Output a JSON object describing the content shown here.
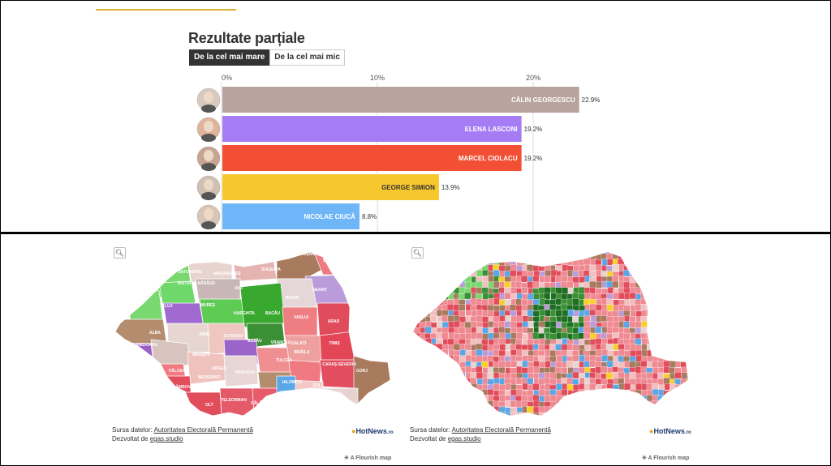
{
  "title": "Rezultate parțiale",
  "sort": {
    "desc_label": "De la cel mai mare",
    "asc_label": "De la cel mai mic"
  },
  "chart_data": {
    "type": "bar",
    "orientation": "horizontal",
    "title": "Rezultate parțiale",
    "x_ticks": [
      "0%",
      "10%",
      "20%"
    ],
    "xlim": [
      0,
      23
    ],
    "unit": "%",
    "grid": true,
    "categories": [
      "CĂLIN GEORGESCU",
      "ELENA LASCONI",
      "MARCEL CIOLACU",
      "GEORGE SIMION",
      "NICOLAE CIUCĂ"
    ],
    "values": [
      22.9,
      19.2,
      19.2,
      13.9,
      8.8
    ],
    "value_labels": [
      "22.9%",
      "19.2%",
      "19.2%",
      "13.9%",
      "8.8%"
    ],
    "colors": [
      "#b9a39f",
      "#a57cf4",
      "#f24f35",
      "#f7c72e",
      "#6eb6f7"
    ],
    "avatar_colors": [
      "#d8c9bf",
      "#e0b49c",
      "#c7a592",
      "#cfc0b3",
      "#d7c5b8"
    ]
  },
  "maps": {
    "left": {
      "zoom_icon": "search-icon",
      "county_labels": [
        "SATU MARE",
        "MARAMUREȘ",
        "SUCEAVA",
        "BOTOȘANI",
        "SĂLAJ",
        "BISTRIȚA-NĂSĂUD",
        "IAȘI",
        "NEAMȚ",
        "BIHOR",
        "CLUJ",
        "MUREȘ",
        "HARGHITA",
        "BACĂU",
        "VASLUI",
        "ARAD",
        "ALBA",
        "SIBIU",
        "COVASNA",
        "VRANCEA",
        "GALAȚI",
        "TIMIȘ",
        "HUNEDOARA",
        "BRAȘOV",
        "BUZĂU",
        "BRĂILA",
        "CARAȘ-SEVERIN",
        "VÂLCEA",
        "ARGEȘ",
        "PRAHOVA",
        "TULCEA",
        "GORJ",
        "MEHEDINȚI",
        "DÂMBOVIȚA",
        "IALOMIȚA",
        "DOLJ",
        "OLT",
        "TELEORMAN",
        "CĂLĂRAȘI",
        "CONSTANȚA"
      ],
      "source_label": "Sursa datelor:",
      "source_link": "Autoritatea Electorală Permanentă",
      "dev_label": "Dezvoltat de",
      "dev_link": "egas.studio",
      "logo_text": "HotNews",
      "logo_suffix": ".ro"
    },
    "right": {
      "zoom_icon": "search-icon",
      "source_label": "Sursa datelor:",
      "source_link": "Autoritatea Electorală Permanentă",
      "dev_label": "Dezvoltat de",
      "dev_link": "egas.studio",
      "logo_text": "HotNews",
      "logo_suffix": ".ro"
    },
    "flourish_left": "A Flourish map",
    "flourish_right": "A Flourish map"
  }
}
